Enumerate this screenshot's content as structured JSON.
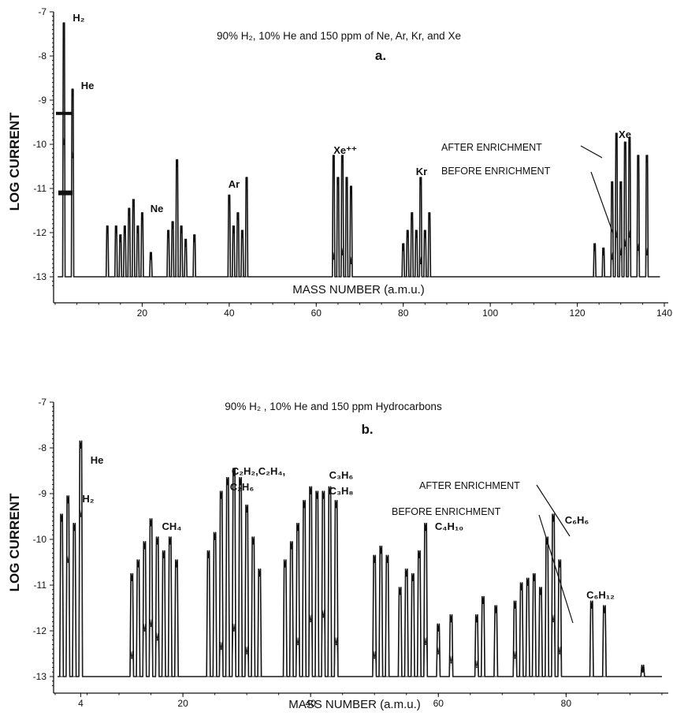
{
  "chart_data": [
    {
      "type": "line",
      "title": "90% H₂, 10% He and 150 ppm of Ne, Ar, Kr, and Xe",
      "panel_label": "a.",
      "xlabel": "MASS NUMBER (a.m.u.)",
      "ylabel": "LOG CURRENT",
      "xlim": [
        0,
        140
      ],
      "ylim": [
        -13.3,
        -7
      ],
      "x_ticks": [
        20,
        40,
        60,
        80,
        100,
        120,
        140
      ],
      "x_tick_labels": [
        "20",
        "40",
        "60",
        "80",
        "100",
        "120",
        "140"
      ],
      "y_ticks": [
        -7,
        -8,
        -9,
        -10,
        -11,
        -12,
        -13
      ],
      "y_tick_labels": [
        "-7",
        "-8",
        "-9",
        "-10",
        "-11",
        "-12",
        "-13"
      ],
      "baseline": -13,
      "series": [
        {
          "name": "AFTER ENRICHMENT",
          "peaks": [
            [
              2,
              -7.4
            ],
            [
              4,
              -8.9
            ],
            [
              12,
              -12.0
            ],
            [
              14,
              -12.0
            ],
            [
              15,
              -12.2
            ],
            [
              16,
              -12.0
            ],
            [
              17,
              -11.6
            ],
            [
              18,
              -11.4
            ],
            [
              19,
              -12.0
            ],
            [
              20,
              -11.7
            ],
            [
              22,
              -12.6
            ],
            [
              26,
              -12.1
            ],
            [
              27,
              -11.9
            ],
            [
              28,
              -10.5
            ],
            [
              29,
              -12.0
            ],
            [
              30,
              -12.3
            ],
            [
              32,
              -12.2
            ],
            [
              40,
              -11.3
            ],
            [
              41,
              -12.0
            ],
            [
              42,
              -11.7
            ],
            [
              43,
              -12.1
            ],
            [
              44,
              -10.9
            ],
            [
              64,
              -10.4
            ],
            [
              65,
              -10.9
            ],
            [
              66,
              -10.4
            ],
            [
              67,
              -10.9
            ],
            [
              68,
              -11.1
            ],
            [
              80,
              -12.4
            ],
            [
              81,
              -12.1
            ],
            [
              82,
              -11.7
            ],
            [
              83,
              -12.1
            ],
            [
              84,
              -10.9
            ],
            [
              85,
              -12.1
            ],
            [
              86,
              -11.7
            ],
            [
              124,
              -12.4
            ],
            [
              126,
              -12.5
            ],
            [
              128,
              -11.0
            ],
            [
              129,
              -9.9
            ],
            [
              130,
              -11.0
            ],
            [
              131,
              -10.1
            ],
            [
              132,
              -10.0
            ],
            [
              134,
              -10.4
            ],
            [
              136,
              -10.4
            ]
          ]
        },
        {
          "name": "BEFORE ENRICHMENT",
          "peaks": [
            [
              2,
              -10.0
            ],
            [
              4,
              -10.3
            ],
            [
              64,
              -12.6
            ],
            [
              66,
              -12.5
            ],
            [
              68,
              -12.7
            ],
            [
              84,
              -12.7
            ],
            [
              128,
              -12.6
            ],
            [
              129,
              -12.1
            ],
            [
              130,
              -12.5
            ],
            [
              131,
              -12.3
            ],
            [
              132,
              -12.1
            ],
            [
              134,
              -12.4
            ],
            [
              136,
              -12.5
            ]
          ]
        }
      ],
      "peak_labels": [
        "H₂",
        "He",
        "Ne",
        "Ar",
        "Xe⁺⁺",
        "Kr",
        "Xe"
      ],
      "annotations": [
        "AFTER ENRICHMENT",
        "BEFORE ENRICHMENT"
      ]
    },
    {
      "type": "line",
      "title": "90% H₂ , 10% He and  150 ppm Hydrocarbons",
      "panel_label": "b.",
      "xlabel": "MASS NUMBER (a.m.u.)",
      "ylabel": "LOG CURRENT",
      "xlim": [
        0,
        96
      ],
      "ylim": [
        -13.3,
        -7
      ],
      "x_ticks": [
        4,
        20,
        40,
        60,
        80
      ],
      "x_tick_labels": [
        "4",
        "20",
        "40",
        "60",
        "80"
      ],
      "y_ticks": [
        -7,
        -8,
        -9,
        -10,
        -11,
        -12,
        -13
      ],
      "y_tick_labels": [
        "-7",
        "-8",
        "-9",
        "-10",
        "-11",
        "-12",
        "-13"
      ],
      "baseline": -13,
      "series": [
        {
          "name": "AFTER ENRICHMENT",
          "peaks": [
            [
              1,
              -9.6
            ],
            [
              2,
              -9.2
            ],
            [
              3,
              -9.8
            ],
            [
              4,
              -8.0
            ],
            [
              12,
              -10.9
            ],
            [
              13,
              -10.6
            ],
            [
              14,
              -10.2
            ],
            [
              15,
              -9.7
            ],
            [
              16,
              -10.1
            ],
            [
              17,
              -10.4
            ],
            [
              18,
              -10.1
            ],
            [
              19,
              -10.6
            ],
            [
              24,
              -10.4
            ],
            [
              25,
              -10.0
            ],
            [
              26,
              -9.1
            ],
            [
              27,
              -8.8
            ],
            [
              28,
              -8.6
            ],
            [
              29,
              -8.8
            ],
            [
              30,
              -9.4
            ],
            [
              31,
              -10.1
            ],
            [
              32,
              -10.8
            ],
            [
              36,
              -10.6
            ],
            [
              37,
              -10.2
            ],
            [
              38,
              -9.8
            ],
            [
              39,
              -9.3
            ],
            [
              40,
              -9.0
            ],
            [
              41,
              -9.1
            ],
            [
              42,
              -9.1
            ],
            [
              43,
              -9.0
            ],
            [
              44,
              -9.3
            ],
            [
              50,
              -10.5
            ],
            [
              51,
              -10.3
            ],
            [
              52,
              -10.5
            ],
            [
              54,
              -11.2
            ],
            [
              55,
              -10.8
            ],
            [
              56,
              -10.9
            ],
            [
              57,
              -10.4
            ],
            [
              58,
              -9.8
            ],
            [
              60,
              -12.0
            ],
            [
              62,
              -11.8
            ],
            [
              66,
              -11.8
            ],
            [
              67,
              -11.4
            ],
            [
              69,
              -11.6
            ],
            [
              72,
              -11.5
            ],
            [
              73,
              -11.1
            ],
            [
              74,
              -11.0
            ],
            [
              75,
              -10.9
            ],
            [
              76,
              -11.2
            ],
            [
              77,
              -10.1
            ],
            [
              78,
              -9.6
            ],
            [
              79,
              -10.6
            ],
            [
              84,
              -11.5
            ],
            [
              86,
              -11.6
            ],
            [
              92,
              -12.9
            ]
          ]
        },
        {
          "name": "BEFORE ENRICHMENT",
          "peaks": [
            [
              2,
              -10.5
            ],
            [
              4,
              -9.5
            ],
            [
              12,
              -12.6
            ],
            [
              14,
              -12.0
            ],
            [
              15,
              -11.9
            ],
            [
              16,
              -12.2
            ],
            [
              26,
              -12.4
            ],
            [
              28,
              -12.0
            ],
            [
              30,
              -12.5
            ],
            [
              38,
              -12.3
            ],
            [
              40,
              -11.8
            ],
            [
              42,
              -11.7
            ],
            [
              44,
              -12.3
            ],
            [
              50,
              -12.6
            ],
            [
              58,
              -12.3
            ],
            [
              60,
              -12.5
            ],
            [
              62,
              -12.7
            ],
            [
              66,
              -12.8
            ],
            [
              72,
              -12.6
            ],
            [
              78,
              -11.8
            ],
            [
              79,
              -12.5
            ]
          ]
        }
      ],
      "peak_labels": [
        "He",
        "H₂",
        "CH₄",
        "C₂H₂,C₂H₄,",
        "C₂H₆",
        "C₃H₆",
        "C₃H₈",
        "C₄H₁₀",
        "C₆H₆",
        "C₆H₁₂"
      ],
      "annotations": [
        "AFTER ENRICHMENT",
        "BEFORE ENRICHMENT"
      ]
    }
  ]
}
